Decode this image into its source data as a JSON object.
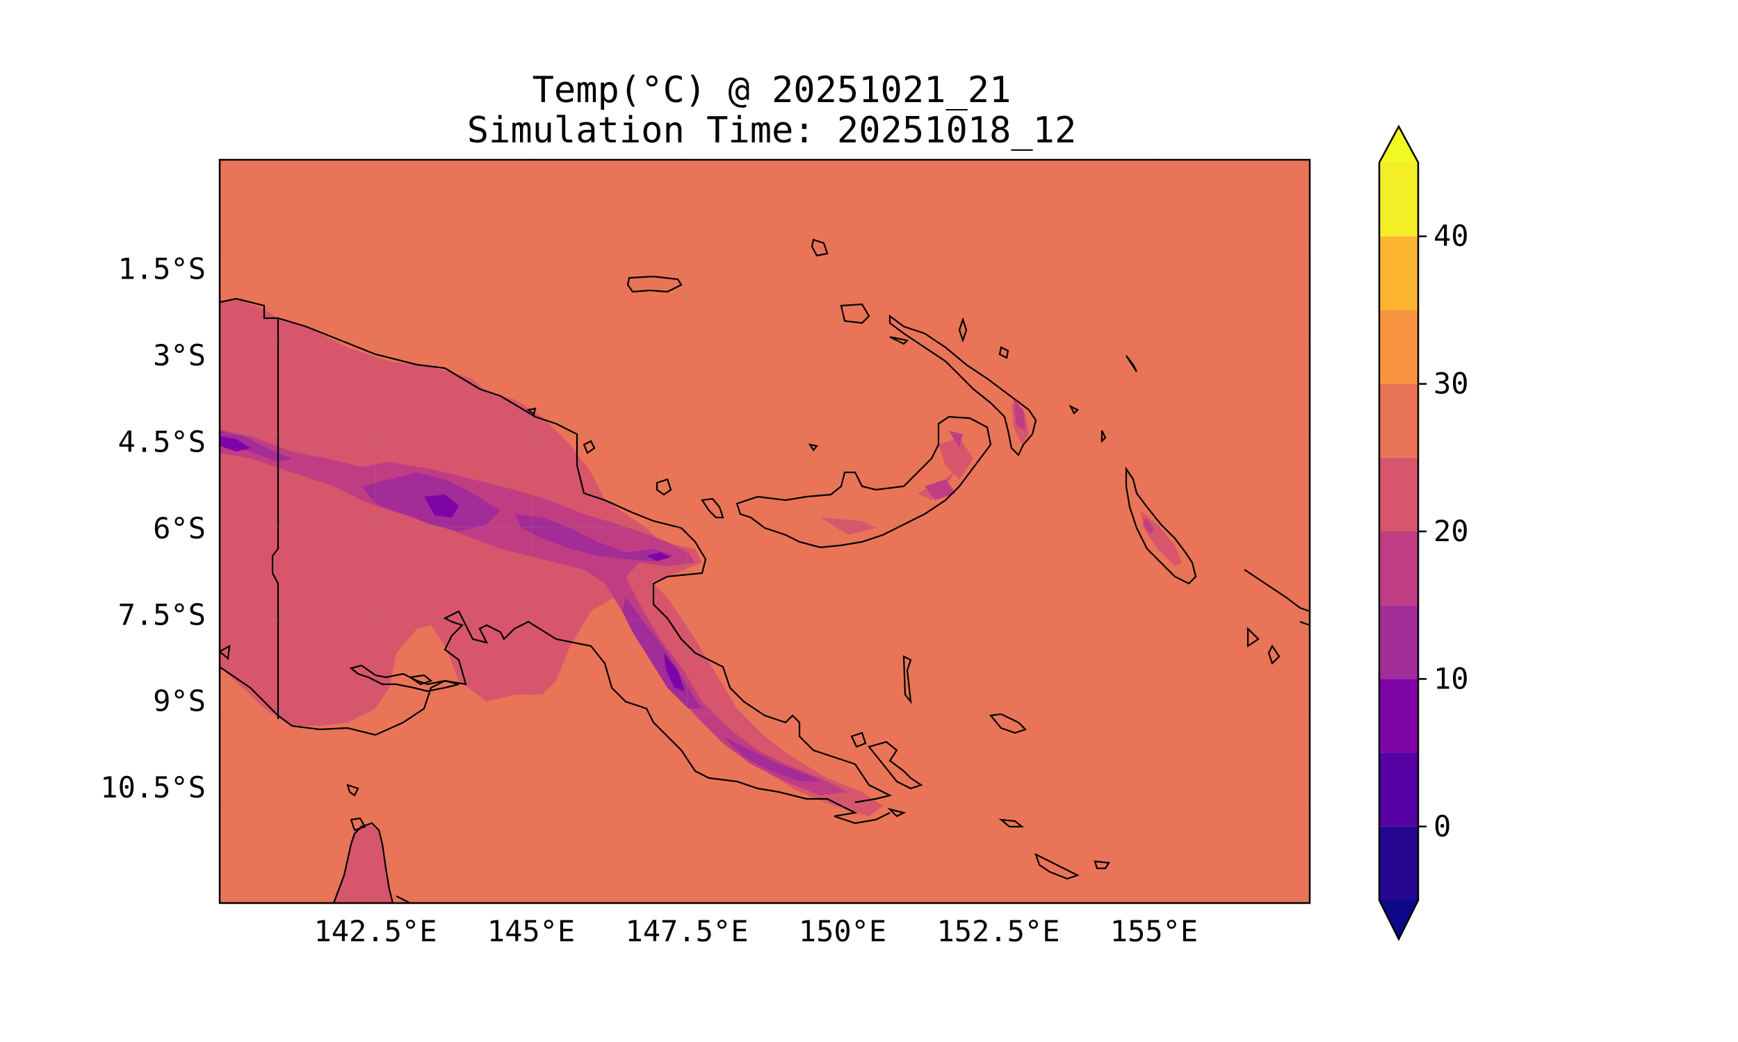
{
  "title": {
    "line1": "Temp(°C) @ 20251021_21",
    "line2": "Simulation Time: 20251018_12"
  },
  "map": {
    "extent_lon": [
      140.0,
      157.5
    ],
    "extent_lat": [
      -12.5,
      0.4
    ],
    "background_level_color": "#ea7457",
    "coastline_color": "#000000",
    "x_ticks": [
      {
        "value": 142.5,
        "label": "142.5°E"
      },
      {
        "value": 145.0,
        "label": "145°E"
      },
      {
        "value": 147.5,
        "label": "147.5°E"
      },
      {
        "value": 150.0,
        "label": "150°E"
      },
      {
        "value": 152.5,
        "label": "152.5°E"
      },
      {
        "value": 155.0,
        "label": "155°E"
      }
    ],
    "y_ticks": [
      {
        "value": -1.5,
        "label": "1.5°S"
      },
      {
        "value": -3.0,
        "label": "3°S"
      },
      {
        "value": -4.5,
        "label": "4.5°S"
      },
      {
        "value": -6.0,
        "label": "6°S"
      },
      {
        "value": -7.5,
        "label": "7.5°S"
      },
      {
        "value": -9.0,
        "label": "9°S"
      },
      {
        "value": -10.5,
        "label": "10.5°S"
      }
    ]
  },
  "colorbar": {
    "levels": [
      -5,
      0,
      5,
      10,
      15,
      20,
      25,
      30,
      35,
      40,
      45
    ],
    "colors": [
      "#25068f",
      "#5602a4",
      "#7f04a8",
      "#a22c98",
      "#c13d83",
      "#d7566c",
      "#ea7457",
      "#f89440",
      "#fdb430",
      "#f3ee26"
    ],
    "under_color": "#0d0887",
    "over_color": "#f0f921",
    "tick_values": [
      0,
      10,
      20,
      30,
      40
    ],
    "tick_labels": [
      "0",
      "10",
      "20",
      "30",
      "40"
    ]
  }
}
